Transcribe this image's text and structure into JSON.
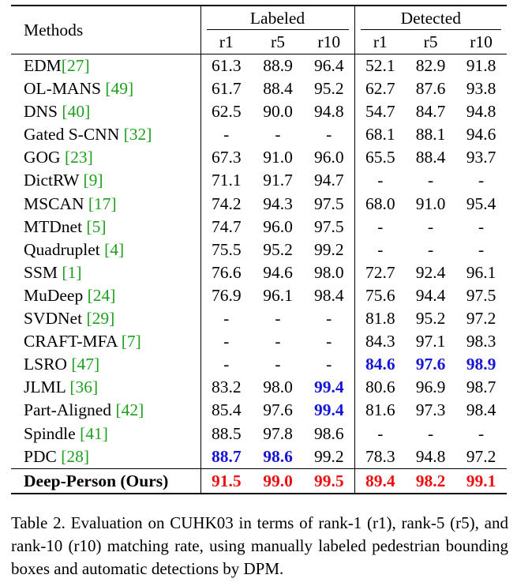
{
  "table": {
    "header": {
      "methods": "Methods",
      "group_labeled": "Labeled",
      "group_detected": "Detected",
      "ranks": [
        "r1",
        "r5",
        "r10",
        "r1",
        "r5",
        "r10"
      ]
    },
    "rows": [
      {
        "name": "EDM",
        "cite": "27",
        "space": false,
        "vals": [
          "61.3",
          "88.9",
          "96.4",
          "52.1",
          "82.9",
          "91.8"
        ],
        "hl": [
          "",
          "",
          "",
          "",
          "",
          ""
        ]
      },
      {
        "name": "OL-MANS",
        "cite": "49",
        "space": true,
        "vals": [
          "61.7",
          "88.4",
          "95.2",
          "62.7",
          "87.6",
          "93.8"
        ],
        "hl": [
          "",
          "",
          "",
          "",
          "",
          ""
        ]
      },
      {
        "name": "DNS",
        "cite": "40",
        "space": true,
        "vals": [
          "62.5",
          "90.0",
          "94.8",
          "54.7",
          "84.7",
          "94.8"
        ],
        "hl": [
          "",
          "",
          "",
          "",
          "",
          ""
        ]
      },
      {
        "name": "Gated S-CNN",
        "cite": "32",
        "space": true,
        "vals": [
          "-",
          "-",
          "-",
          "68.1",
          "88.1",
          "94.6"
        ],
        "hl": [
          "",
          "",
          "",
          "",
          "",
          ""
        ]
      },
      {
        "name": "GOG",
        "cite": "23",
        "space": true,
        "vals": [
          "67.3",
          "91.0",
          "96.0",
          "65.5",
          "88.4",
          "93.7"
        ],
        "hl": [
          "",
          "",
          "",
          "",
          "",
          ""
        ]
      },
      {
        "name": "DictRW",
        "cite": "9",
        "space": true,
        "vals": [
          "71.1",
          "91.7",
          "94.7",
          "-",
          "-",
          "-"
        ],
        "hl": [
          "",
          "",
          "",
          "",
          "",
          ""
        ]
      },
      {
        "name": "MSCAN",
        "cite": "17",
        "space": true,
        "vals": [
          "74.2",
          "94.3",
          "97.5",
          "68.0",
          "91.0",
          "95.4"
        ],
        "hl": [
          "",
          "",
          "",
          "",
          "",
          ""
        ]
      },
      {
        "name": "MTDnet",
        "cite": "5",
        "space": true,
        "vals": [
          "74.7",
          "96.0",
          "97.5",
          "-",
          "-",
          "-"
        ],
        "hl": [
          "",
          "",
          "",
          "",
          "",
          ""
        ]
      },
      {
        "name": "Quadruplet",
        "cite": "4",
        "space": true,
        "vals": [
          "75.5",
          "95.2",
          "99.2",
          "-",
          "-",
          "-"
        ],
        "hl": [
          "",
          "",
          "",
          "",
          "",
          ""
        ]
      },
      {
        "name": "SSM",
        "cite": "1",
        "space": true,
        "vals": [
          "76.6",
          "94.6",
          "98.0",
          "72.7",
          "92.4",
          "96.1"
        ],
        "hl": [
          "",
          "",
          "",
          "",
          "",
          ""
        ]
      },
      {
        "name": "MuDeep",
        "cite": "24",
        "space": true,
        "vals": [
          "76.9",
          "96.1",
          "98.4",
          "75.6",
          "94.4",
          "97.5"
        ],
        "hl": [
          "",
          "",
          "",
          "",
          "",
          ""
        ]
      },
      {
        "name": "SVDNet",
        "cite": "29",
        "space": true,
        "vals": [
          "-",
          "-",
          "-",
          "81.8",
          "95.2",
          "97.2"
        ],
        "hl": [
          "",
          "",
          "",
          "",
          "",
          ""
        ]
      },
      {
        "name": "CRAFT-MFA",
        "cite": "7",
        "space": true,
        "vals": [
          "-",
          "-",
          "-",
          "84.3",
          "97.1",
          "98.3"
        ],
        "hl": [
          "",
          "",
          "",
          "",
          "",
          ""
        ]
      },
      {
        "name": "LSRO",
        "cite": "47",
        "space": true,
        "vals": [
          "-",
          "-",
          "-",
          "84.6",
          "97.6",
          "98.9"
        ],
        "hl": [
          "",
          "",
          "",
          "second",
          "second",
          "second"
        ]
      },
      {
        "name": "JLML",
        "cite": "36",
        "space": true,
        "vals": [
          "83.2",
          "98.0",
          "99.4",
          "80.6",
          "96.9",
          "98.7"
        ],
        "hl": [
          "",
          "",
          "second",
          "",
          "",
          ""
        ]
      },
      {
        "name": "Part-Aligned",
        "cite": "42",
        "space": true,
        "vals": [
          "85.4",
          "97.6",
          "99.4",
          "81.6",
          "97.3",
          "98.4"
        ],
        "hl": [
          "",
          "",
          "second",
          "",
          "",
          ""
        ]
      },
      {
        "name": "Spindle",
        "cite": "41",
        "space": true,
        "vals": [
          "88.5",
          "97.8",
          "98.6",
          "-",
          "-",
          "-"
        ],
        "hl": [
          "",
          "",
          "",
          "",
          "",
          ""
        ]
      },
      {
        "name": "PDC",
        "cite": "28",
        "space": true,
        "vals": [
          "88.7",
          "98.6",
          "99.2",
          "78.3",
          "94.8",
          "97.2"
        ],
        "hl": [
          "second",
          "second",
          "",
          "",
          "",
          ""
        ]
      }
    ],
    "ours": {
      "name": "Deep-Person (Ours)",
      "vals": [
        "91.5",
        "99.0",
        "99.5",
        "89.4",
        "98.2",
        "99.1"
      ],
      "hl": [
        "best",
        "best",
        "best",
        "best",
        "best",
        "best"
      ]
    }
  },
  "caption": "Table 2. Evaluation on CUHK03 in terms of rank-1 (r1), rank-5 (r5), and rank-10 (r10) matching rate, using manually labeled pedestrian bounding boxes and automatic detections by DPM.",
  "colors": {
    "citation": "#1ea01e",
    "best": "#ee1010",
    "second_best": "#1515d8"
  }
}
